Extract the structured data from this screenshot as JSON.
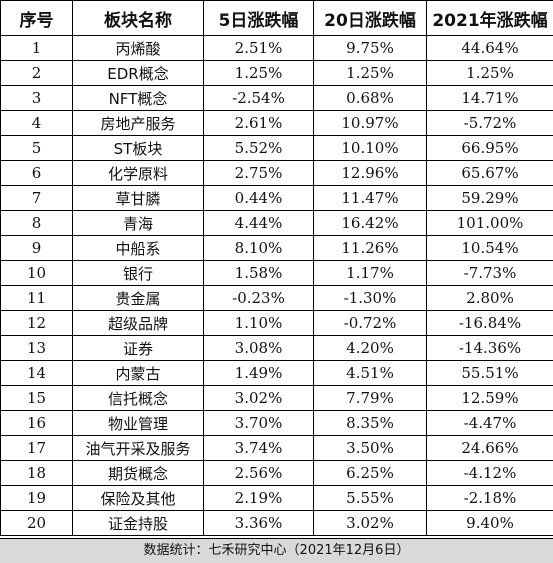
{
  "table": {
    "headers": [
      "序号",
      "板块名称",
      "5日涨跌幅",
      "20日涨跌幅",
      "2021年涨跌幅"
    ],
    "rows": [
      [
        "1",
        "丙烯酸",
        "2.51%",
        "9.75%",
        "44.64%"
      ],
      [
        "2",
        "EDR概念",
        "1.25%",
        "1.25%",
        "1.25%"
      ],
      [
        "3",
        "NFT概念",
        "-2.54%",
        "0.68%",
        "14.71%"
      ],
      [
        "4",
        "房地产服务",
        "2.61%",
        "10.97%",
        "-5.72%"
      ],
      [
        "5",
        "ST板块",
        "5.52%",
        "10.10%",
        "66.95%"
      ],
      [
        "6",
        "化学原料",
        "2.75%",
        "12.96%",
        "65.67%"
      ],
      [
        "7",
        "草甘膦",
        "0.44%",
        "11.47%",
        "59.29%"
      ],
      [
        "8",
        "青海",
        "4.44%",
        "16.42%",
        "101.00%"
      ],
      [
        "9",
        "中船系",
        "8.10%",
        "11.26%",
        "10.54%"
      ],
      [
        "10",
        "银行",
        "1.58%",
        "1.17%",
        "-7.73%"
      ],
      [
        "11",
        "贵金属",
        "-0.23%",
        "-1.30%",
        "2.80%"
      ],
      [
        "12",
        "超级品牌",
        "1.10%",
        "-0.72%",
        "-16.84%"
      ],
      [
        "13",
        "证券",
        "3.08%",
        "4.20%",
        "-14.36%"
      ],
      [
        "14",
        "内蒙古",
        "1.49%",
        "4.51%",
        "55.51%"
      ],
      [
        "15",
        "信托概念",
        "3.02%",
        "7.79%",
        "12.59%"
      ],
      [
        "16",
        "物业管理",
        "3.70%",
        "8.35%",
        "-4.47%"
      ],
      [
        "17",
        "油气开采及服务",
        "3.74%",
        "3.50%",
        "24.66%"
      ],
      [
        "18",
        "期货概念",
        "2.56%",
        "6.25%",
        "-4.12%"
      ],
      [
        "19",
        "保险及其他",
        "2.19%",
        "5.55%",
        "-2.18%"
      ],
      [
        "20",
        "证金持股",
        "3.36%",
        "3.02%",
        "9.40%"
      ]
    ]
  },
  "footer": {
    "text": "数据统计：七禾研究中心（2021年12月6日）",
    "background": "#d9d9d9"
  }
}
